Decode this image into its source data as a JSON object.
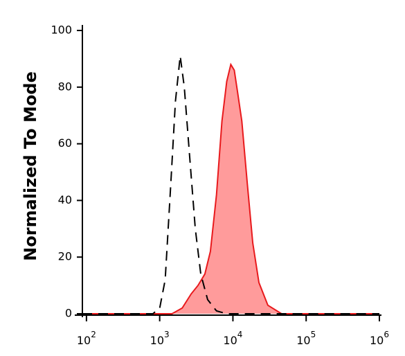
{
  "chart_data": {
    "type": "histogram-overlay",
    "ylabel": "Normalized To Mode",
    "xscale": "log",
    "xlim": [
      88,
      1000000
    ],
    "ylim": [
      0,
      100
    ],
    "yticks": [
      0,
      20,
      40,
      60,
      80,
      100
    ],
    "xticks": [
      {
        "value": 100,
        "label": "10",
        "exponent": "2"
      },
      {
        "value": 1000,
        "label": "10",
        "exponent": "3"
      },
      {
        "value": 10000,
        "label": "10",
        "exponent": "4"
      },
      {
        "value": 100000,
        "label": "10",
        "exponent": "5"
      },
      {
        "value": 1000000,
        "label": "10",
        "exponent": "6"
      }
    ],
    "series": [
      {
        "color": "#e8191c",
        "fill": "#ff9b9b",
        "dashed": false,
        "x": [
          88,
          1000,
          1472,
          2032,
          2690,
          3337,
          4140,
          4920,
          5970,
          7080,
          8240,
          9370,
          10440,
          11620,
          13220,
          15700,
          18660,
          22650,
          29990,
          46130,
          1000000
        ],
        "values": [
          0,
          0,
          0,
          2,
          7,
          10,
          14,
          22,
          42,
          68,
          82,
          88,
          86,
          78,
          68,
          46,
          25,
          11,
          3,
          0,
          0
        ]
      },
      {
        "color": "#000000",
        "fill": null,
        "dashed": true,
        "x": [
          88,
          807,
          1000,
          1189,
          1413,
          1641,
          1905,
          2168,
          2576,
          3062,
          3640,
          4510,
          5970,
          8240,
          1000000
        ],
        "values": [
          0,
          0,
          2,
          12,
          45,
          75,
          91,
          80,
          55,
          30,
          14,
          5,
          1,
          0,
          0
        ]
      }
    ]
  }
}
